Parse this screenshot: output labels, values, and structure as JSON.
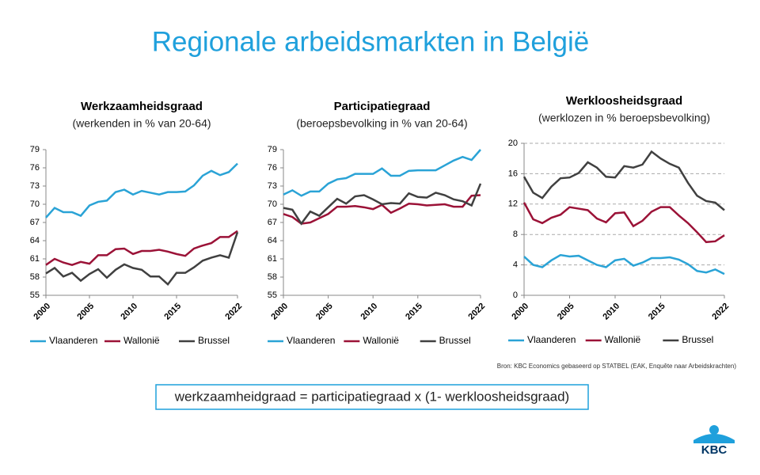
{
  "title": "Regionale arbeidsmarkten in België",
  "source": "Bron: KBC Economics gebaseerd op STATBEL (EAK, Enquête naar Arbeidskrachten)",
  "formula": "werkzaamheidgraad = participatiegraad x (1- werkloosheidsgraad)",
  "logo": "KBC",
  "chart_data": [
    {
      "type": "line",
      "title": "Werkzaamheidsgraad",
      "subtitle": "(werkenden in % van 20-64)",
      "x": [
        2000,
        2001,
        2002,
        2003,
        2004,
        2005,
        2006,
        2007,
        2008,
        2009,
        2010,
        2011,
        2012,
        2013,
        2014,
        2015,
        2016,
        2017,
        2018,
        2019,
        2020,
        2021,
        2022
      ],
      "xlim": [
        2000,
        2022
      ],
      "xticks": [
        2000,
        2005,
        2010,
        2015,
        2022
      ],
      "ylim": [
        55,
        79
      ],
      "yticks": [
        55,
        58,
        61,
        64,
        67,
        70,
        73,
        76,
        79
      ],
      "grid": false,
      "series": [
        {
          "name": "Vlaanderen",
          "color": "#2aa3d6",
          "values": [
            67.8,
            69.4,
            68.7,
            68.7,
            68.1,
            69.8,
            70.4,
            70.6,
            72.0,
            72.4,
            71.6,
            72.2,
            71.9,
            71.6,
            72.0,
            72.0,
            72.1,
            73.1,
            74.7,
            75.5,
            74.8,
            75.3,
            76.7
          ]
        },
        {
          "name": "Wallonië",
          "color": "#9b1237",
          "values": [
            60.0,
            61.0,
            60.4,
            60.0,
            60.5,
            60.2,
            61.6,
            61.6,
            62.6,
            62.7,
            61.8,
            62.3,
            62.3,
            62.5,
            62.2,
            61.8,
            61.5,
            62.7,
            63.2,
            63.6,
            64.6,
            64.6,
            65.6
          ]
        },
        {
          "name": "Brussel",
          "color": "#404040",
          "values": [
            58.6,
            59.5,
            58.1,
            58.7,
            57.4,
            58.5,
            59.3,
            57.9,
            59.2,
            60.1,
            59.5,
            59.2,
            58.1,
            58.1,
            56.8,
            58.7,
            58.7,
            59.6,
            60.7,
            61.2,
            61.6,
            61.2,
            65.4
          ]
        }
      ]
    },
    {
      "type": "line",
      "title": "Participatiegraad",
      "subtitle": "(beroepsbevolking in % van 20-64)",
      "x": [
        2000,
        2001,
        2002,
        2003,
        2004,
        2005,
        2006,
        2007,
        2008,
        2009,
        2010,
        2011,
        2012,
        2013,
        2014,
        2015,
        2016,
        2017,
        2018,
        2019,
        2020,
        2021,
        2022
      ],
      "xlim": [
        2000,
        2022
      ],
      "xticks": [
        2000,
        2005,
        2010,
        2015,
        2022
      ],
      "ylim": [
        55,
        79
      ],
      "yticks": [
        55,
        58,
        61,
        64,
        67,
        70,
        73,
        76,
        79
      ],
      "grid": false,
      "series": [
        {
          "name": "Vlaanderen",
          "color": "#2aa3d6",
          "values": [
            71.6,
            72.3,
            71.4,
            72.1,
            72.1,
            73.4,
            74.1,
            74.3,
            75.0,
            75.0,
            75.0,
            75.9,
            74.7,
            74.7,
            75.5,
            75.6,
            75.6,
            75.6,
            76.4,
            77.2,
            77.8,
            77.3,
            79.0
          ]
        },
        {
          "name": "Wallonië",
          "color": "#9b1237",
          "values": [
            68.4,
            67.9,
            66.8,
            67.0,
            67.7,
            68.4,
            69.6,
            69.6,
            69.7,
            69.5,
            69.2,
            69.9,
            68.6,
            69.3,
            70.1,
            70.0,
            69.8,
            69.9,
            70.0,
            69.6,
            69.6,
            71.4,
            71.5
          ]
        },
        {
          "name": "Brussel",
          "color": "#404040",
          "values": [
            69.4,
            69.1,
            66.8,
            68.8,
            68.1,
            69.5,
            70.9,
            70.1,
            71.3,
            71.5,
            70.8,
            70.0,
            70.2,
            70.1,
            71.8,
            71.2,
            71.1,
            71.9,
            71.5,
            70.8,
            70.5,
            69.8,
            73.4
          ]
        }
      ]
    },
    {
      "type": "line",
      "title": "Werkloosheidsgraad",
      "subtitle": "(werklozen in % beroepsbevolking)",
      "x": [
        2000,
        2001,
        2002,
        2003,
        2004,
        2005,
        2006,
        2007,
        2008,
        2009,
        2010,
        2011,
        2012,
        2013,
        2014,
        2015,
        2016,
        2017,
        2018,
        2019,
        2020,
        2021,
        2022
      ],
      "xlim": [
        2000,
        2022
      ],
      "xticks": [
        2000,
        2005,
        2010,
        2015,
        2022
      ],
      "ylim": [
        0,
        20
      ],
      "yticks": [
        0,
        4,
        8,
        12,
        16,
        20
      ],
      "grid": true,
      "series": [
        {
          "name": "Vlaanderen",
          "color": "#2aa3d6",
          "values": [
            5.1,
            4.0,
            3.7,
            4.6,
            5.3,
            5.1,
            5.2,
            4.6,
            4.0,
            3.7,
            4.6,
            4.8,
            3.9,
            4.3,
            4.9,
            4.9,
            5.0,
            4.7,
            4.1,
            3.2,
            3.0,
            3.4,
            2.8
          ]
        },
        {
          "name": "Wallonië",
          "color": "#9b1237",
          "values": [
            12.2,
            10.0,
            9.5,
            10.2,
            10.6,
            11.6,
            11.4,
            11.2,
            10.1,
            9.6,
            10.8,
            10.9,
            9.1,
            9.8,
            11.0,
            11.6,
            11.6,
            10.5,
            9.5,
            8.3,
            7.0,
            7.1,
            7.9
          ]
        },
        {
          "name": "Brussel",
          "color": "#404040",
          "values": [
            15.6,
            13.5,
            12.8,
            14.3,
            15.4,
            15.5,
            16.1,
            17.5,
            16.8,
            15.6,
            15.5,
            17.0,
            16.8,
            17.2,
            18.9,
            18.0,
            17.3,
            16.8,
            14.8,
            13.1,
            12.4,
            12.2,
            11.2
          ]
        }
      ]
    }
  ]
}
